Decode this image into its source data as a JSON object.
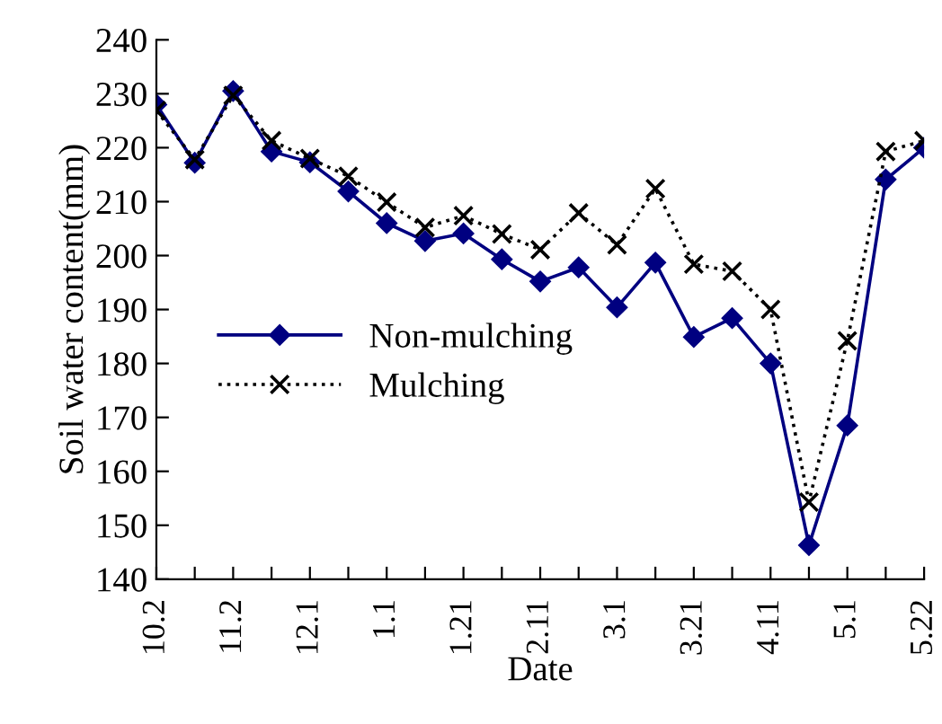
{
  "chart_data": {
    "type": "line",
    "xlabel": "Date",
    "ylabel": "Soil water content(mm)",
    "categories": [
      "10.2",
      null,
      "11.2",
      null,
      "12.1",
      null,
      "1.1",
      null,
      "1.21",
      null,
      "2.11",
      null,
      "3.1",
      null,
      "3.21",
      null,
      "4.11",
      null,
      "5.1",
      null,
      "5.22"
    ],
    "series": [
      {
        "name": "Non-mulching",
        "color": "#000080",
        "marker": "diamond",
        "line_style": "solid",
        "values": [
          228,
          217.2,
          230.5,
          219.3,
          217.3,
          211.9,
          206,
          202.7,
          204.1,
          199.3,
          195.2,
          197.8,
          190.4,
          198.7,
          184.9,
          188.4,
          180,
          146.3,
          168.5,
          214.1,
          220
        ]
      },
      {
        "name": "Mulching",
        "color": "#000000",
        "marker": "cross",
        "line_style": "dotted",
        "values": [
          226.9,
          217.8,
          229.7,
          221.3,
          218,
          214.7,
          209.9,
          205.2,
          207.4,
          204,
          201.1,
          207.9,
          202,
          212.4,
          198.4,
          197.1,
          190,
          154.3,
          184.2,
          219.3,
          221.3
        ]
      }
    ],
    "ylim": [
      140,
      240
    ],
    "yticks": [
      140,
      150,
      160,
      170,
      180,
      190,
      200,
      210,
      220,
      230,
      240
    ],
    "grid": false,
    "legend": "center"
  }
}
